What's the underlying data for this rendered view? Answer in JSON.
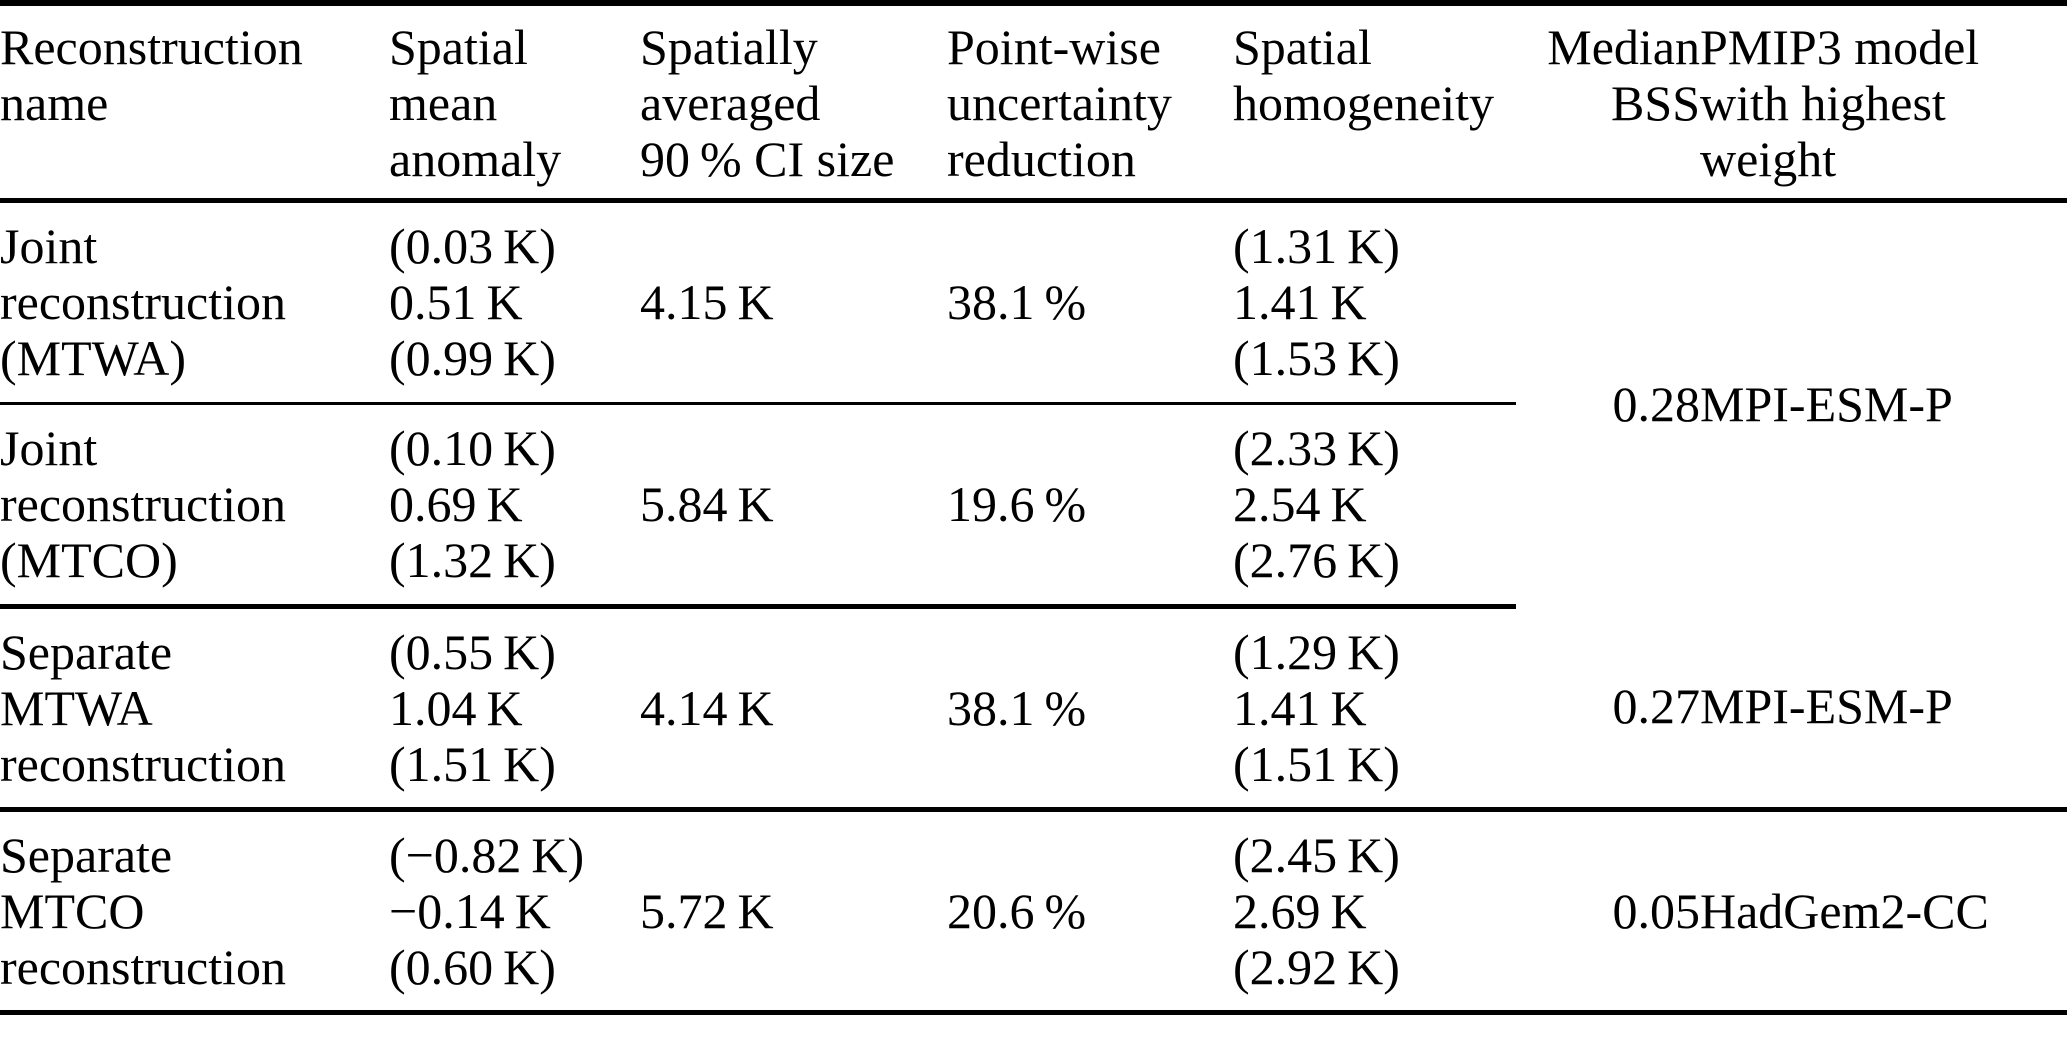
{
  "colors": {
    "text": "#000000",
    "background": "#ffffff",
    "rule": "#000000"
  },
  "table": {
    "header": [
      {
        "id": "reconstruction-name",
        "lines": [
          "Reconstruction",
          "name"
        ]
      },
      {
        "id": "spatial-mean-anomaly",
        "lines": [
          "Spatial",
          "mean",
          "anomaly"
        ]
      },
      {
        "id": "ci-size",
        "lines": [
          "Spatially",
          "averaged",
          "90 % CI size"
        ]
      },
      {
        "id": "uncertainty-reduction",
        "lines": [
          "Point-wise",
          "uncertainty",
          "reduction"
        ]
      },
      {
        "id": "spatial-homogeneity",
        "lines": [
          "Spatial",
          "homogeneity"
        ]
      },
      {
        "id": "median-bss",
        "lines": [
          "Median",
          "BSS"
        ]
      },
      {
        "id": "pmip3-model",
        "lines": [
          "PMIP3 model",
          "with highest",
          "weight"
        ]
      }
    ],
    "rows": [
      {
        "name_lines": [
          "Joint",
          "reconstruction",
          "(MTWA)"
        ],
        "spatial_mean_anomaly": [
          "(0.03 K)",
          "0.51 K",
          "(0.99 K)"
        ],
        "ci_size": "4.15 K",
        "uncertainty_reduction": "38.1 %",
        "spatial_homogeneity": [
          "(1.31 K)",
          "1.41 K",
          "(1.53 K)"
        ],
        "median_bss": "0.28",
        "pmip3_model": "MPI-ESM-P"
      },
      {
        "name_lines": [
          "Joint",
          "reconstruction",
          "(MTCO)"
        ],
        "spatial_mean_anomaly": [
          "(0.10 K)",
          "0.69 K",
          "(1.32 K)"
        ],
        "ci_size": "5.84 K",
        "uncertainty_reduction": "19.6 %",
        "spatial_homogeneity": [
          "(2.33 K)",
          "2.54 K",
          "(2.76 K)"
        ]
      },
      {
        "name_lines": [
          "Separate",
          "MTWA",
          "reconstruction"
        ],
        "spatial_mean_anomaly": [
          "(0.55 K)",
          "1.04 K",
          "(1.51 K)"
        ],
        "ci_size": "4.14 K",
        "uncertainty_reduction": "38.1 %",
        "spatial_homogeneity": [
          "(1.29 K)",
          "1.41 K",
          "(1.51 K)"
        ],
        "median_bss": "0.27",
        "pmip3_model": "MPI-ESM-P"
      },
      {
        "name_lines": [
          "Separate",
          "MTCO",
          "reconstruction"
        ],
        "spatial_mean_anomaly": [
          "(−0.82 K)",
          "−0.14 K",
          "(0.60 K)"
        ],
        "ci_size": "5.72 K",
        "uncertainty_reduction": "20.6 %",
        "spatial_homogeneity": [
          "(2.45 K)",
          "2.69 K",
          "(2.92 K)"
        ],
        "median_bss": "0.05",
        "pmip3_model": "HadGem2-CC"
      }
    ]
  }
}
